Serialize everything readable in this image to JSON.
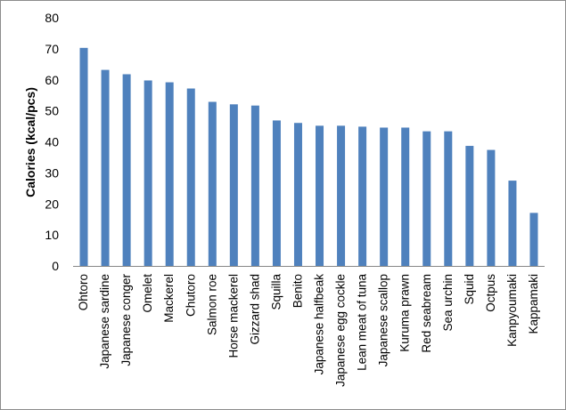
{
  "chart_data": {
    "type": "bar",
    "title": "",
    "xlabel": "",
    "ylabel": "Calories (kcal/pcs)",
    "ylim": [
      0,
      80
    ],
    "yticks": [
      0,
      10,
      20,
      30,
      40,
      50,
      60,
      70,
      80
    ],
    "grid": false,
    "legend": "none",
    "bar_color": "#4f81bd",
    "categories": [
      "Ohtoro",
      "Japanese sardine",
      "Japanese conger",
      "Omelet",
      "Mackerel",
      "Chutoro",
      "Salmon roe",
      "Horse mackerel",
      "Gizzard shad",
      "Squilla",
      "Benito",
      "Japanese halfbeak",
      "Japanese egg cockle",
      "Lean meat of tuna",
      "Japanese scallop",
      "Kuruma prawn",
      "Red seabream",
      "Sea urchin",
      "Squid",
      "Octpus",
      "Kanpyoumaki",
      "Kappamaki"
    ],
    "values": [
      70.3,
      63.2,
      61.8,
      59.8,
      59.2,
      57.2,
      52.9,
      52.1,
      51.7,
      46.9,
      46.1,
      45.2,
      45.2,
      44.9,
      44.6,
      44.6,
      43.4,
      43.4,
      38.7,
      37.4,
      27.5,
      17.1
    ]
  }
}
